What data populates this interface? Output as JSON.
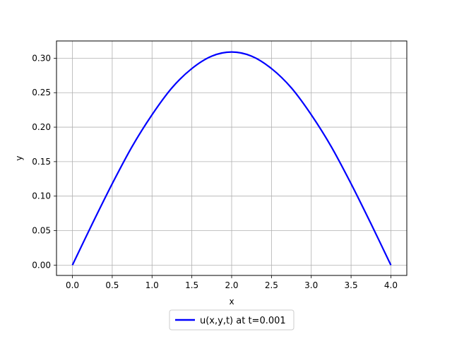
{
  "chart_data": {
    "type": "line",
    "title": "",
    "xlabel": "x",
    "ylabel": "y",
    "xlim": [
      -0.2,
      4.2
    ],
    "ylim": [
      -0.015,
      0.325
    ],
    "xticks": [
      0.0,
      0.5,
      1.0,
      1.5,
      2.0,
      2.5,
      3.0,
      3.5,
      4.0
    ],
    "xtick_labels": [
      "0.0",
      "0.5",
      "1.0",
      "1.5",
      "2.0",
      "2.5",
      "3.0",
      "3.5",
      "4.0"
    ],
    "yticks": [
      0.0,
      0.05,
      0.1,
      0.15,
      0.2,
      0.25,
      0.3
    ],
    "ytick_labels": [
      "0.00",
      "0.05",
      "0.10",
      "0.15",
      "0.20",
      "0.25",
      "0.30"
    ],
    "grid": true,
    "legend_position": "bottom-center, below axes",
    "series": [
      {
        "name": "u(x,y,t) at t=0.001",
        "color": "#0000ff",
        "x": [
          0.0,
          0.25,
          0.5,
          0.75,
          1.0,
          1.25,
          1.5,
          1.75,
          2.0,
          2.25,
          2.5,
          2.75,
          3.0,
          3.25,
          3.5,
          3.75,
          4.0
        ],
        "y": [
          0.0,
          0.06,
          0.118,
          0.172,
          0.218,
          0.257,
          0.285,
          0.303,
          0.309,
          0.303,
          0.285,
          0.257,
          0.218,
          0.172,
          0.118,
          0.06,
          0.0
        ]
      }
    ]
  }
}
